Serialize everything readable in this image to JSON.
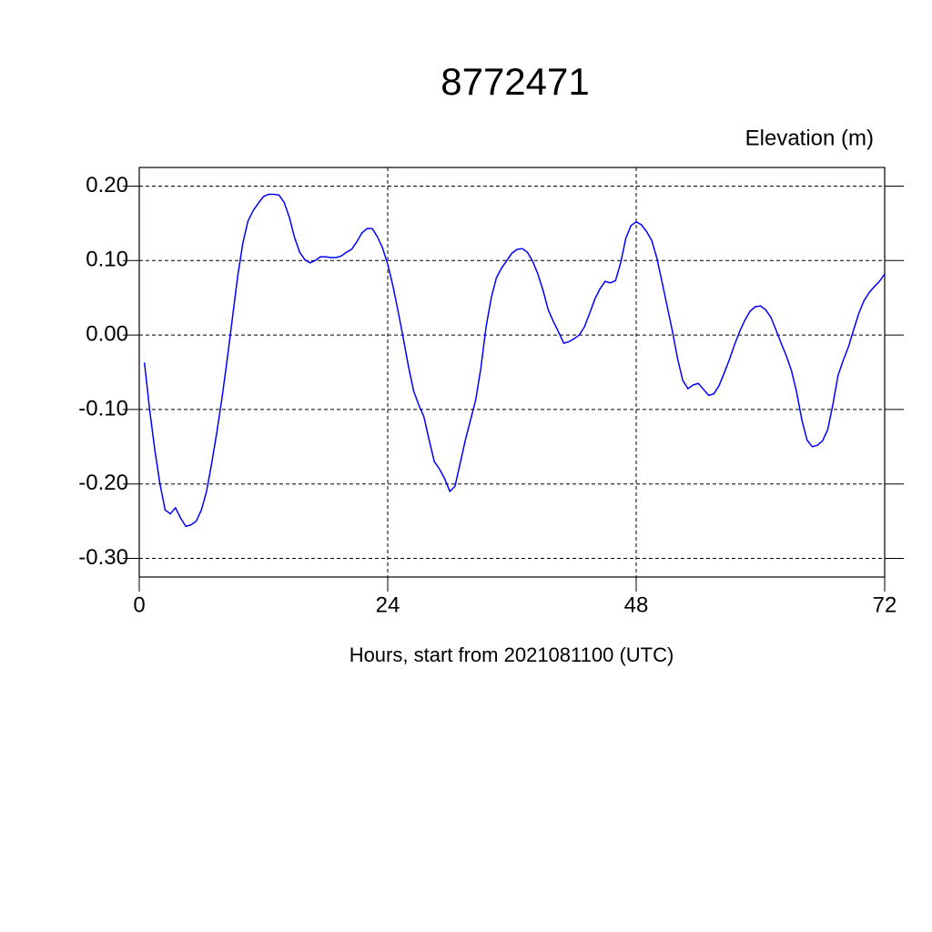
{
  "chart_data": {
    "type": "line",
    "title": "8772471",
    "y_label": "Elevation (m)",
    "x_label": "Hours, start from 2021081100 (UTC)",
    "xlim": [
      0,
      72
    ],
    "xticks": [
      0,
      24,
      48,
      72
    ],
    "ylim": [
      -0.325,
      0.225
    ],
    "yticks": [
      {
        "value": -0.3,
        "label": "-0.30"
      },
      {
        "value": -0.2,
        "label": "-0.20"
      },
      {
        "value": -0.1,
        "label": "-0.10"
      },
      {
        "value": 0,
        "label": "0.00"
      },
      {
        "value": 0.1,
        "label": "0.10"
      },
      {
        "value": 0.2,
        "label": "0.20"
      }
    ],
    "grid": true,
    "x": [
      0.5,
      1,
      1.5,
      2,
      2.5,
      3,
      3.5,
      4,
      4.5,
      5,
      5.5,
      6,
      6.5,
      7,
      7.5,
      8,
      8.5,
      9,
      9.5,
      10,
      10.5,
      11,
      11.5,
      12,
      12.5,
      13,
      13.5,
      14,
      14.5,
      15,
      15.5,
      16,
      16.5,
      17,
      17.5,
      18,
      18.5,
      19,
      19.5,
      20,
      20.5,
      21,
      21.5,
      22,
      22.5,
      23,
      23.5,
      24,
      24.5,
      25,
      25.5,
      26,
      26.5,
      27,
      27.5,
      28,
      28.5,
      29,
      29.5,
      30,
      30.5,
      31,
      31.5,
      32,
      32.5,
      33,
      33.5,
      34,
      34.5,
      35,
      35.5,
      36,
      36.5,
      37,
      37.5,
      38,
      38.5,
      39,
      39.5,
      40,
      40.5,
      41,
      41.5,
      42,
      42.5,
      43,
      43.5,
      44,
      44.5,
      45,
      45.5,
      46,
      46.5,
      47,
      47.5,
      48,
      48.5,
      49,
      49.5,
      50,
      50.5,
      51,
      51.5,
      52,
      52.5,
      53,
      53.5,
      54,
      54.5,
      55,
      55.5,
      56,
      56.5,
      57,
      57.5,
      58,
      58.5,
      59,
      59.5,
      60,
      60.5,
      61,
      61.5,
      62,
      62.5,
      63,
      63.5,
      64,
      64.5,
      65,
      65.5,
      66,
      66.5,
      67,
      67.5,
      68,
      68.5,
      69,
      69.5,
      70,
      70.5,
      71,
      71.5,
      72
    ],
    "series": [
      {
        "color": "#0000ff",
        "values": [
          -0.037,
          -0.1,
          -0.154,
          -0.2,
          -0.235,
          -0.24,
          -0.232,
          -0.246,
          -0.257,
          -0.255,
          -0.25,
          -0.235,
          -0.21,
          -0.172,
          -0.13,
          -0.084,
          -0.032,
          0.023,
          0.078,
          0.123,
          0.153,
          0.167,
          0.177,
          0.186,
          0.189,
          0.189,
          0.188,
          0.178,
          0.158,
          0.131,
          0.111,
          0.101,
          0.097,
          0.1,
          0.105,
          0.105,
          0.104,
          0.104,
          0.106,
          0.111,
          0.115,
          0.125,
          0.137,
          0.143,
          0.143,
          0.132,
          0.117,
          0.095,
          0.066,
          0.032,
          -0.004,
          -0.042,
          -0.075,
          -0.094,
          -0.11,
          -0.141,
          -0.17,
          -0.18,
          -0.193,
          -0.21,
          -0.203,
          -0.172,
          -0.141,
          -0.114,
          -0.087,
          -0.044,
          0.011,
          0.05,
          0.077,
          0.09,
          0.1,
          0.11,
          0.115,
          0.116,
          0.111,
          0.099,
          0.082,
          0.06,
          0.034,
          0.018,
          0.004,
          -0.011,
          -0.009,
          -0.005,
          0,
          0.011,
          0.029,
          0.048,
          0.062,
          0.072,
          0.07,
          0.073,
          0.097,
          0.13,
          0.147,
          0.152,
          0.148,
          0.139,
          0.127,
          0.103,
          0.071,
          0.038,
          0.005,
          -0.032,
          -0.061,
          -0.072,
          -0.067,
          -0.065,
          -0.073,
          -0.081,
          -0.079,
          -0.068,
          -0.051,
          -0.033,
          -0.013,
          0.005,
          0.02,
          0.032,
          0.038,
          0.039,
          0.034,
          0.024,
          0.007,
          -0.011,
          -0.028,
          -0.048,
          -0.077,
          -0.114,
          -0.141,
          -0.15,
          -0.148,
          -0.142,
          -0.127,
          -0.093,
          -0.054,
          -0.034,
          -0.016,
          0.007,
          0.029,
          0.046,
          0.057,
          0.065,
          0.072,
          0.082
        ]
      }
    ]
  }
}
